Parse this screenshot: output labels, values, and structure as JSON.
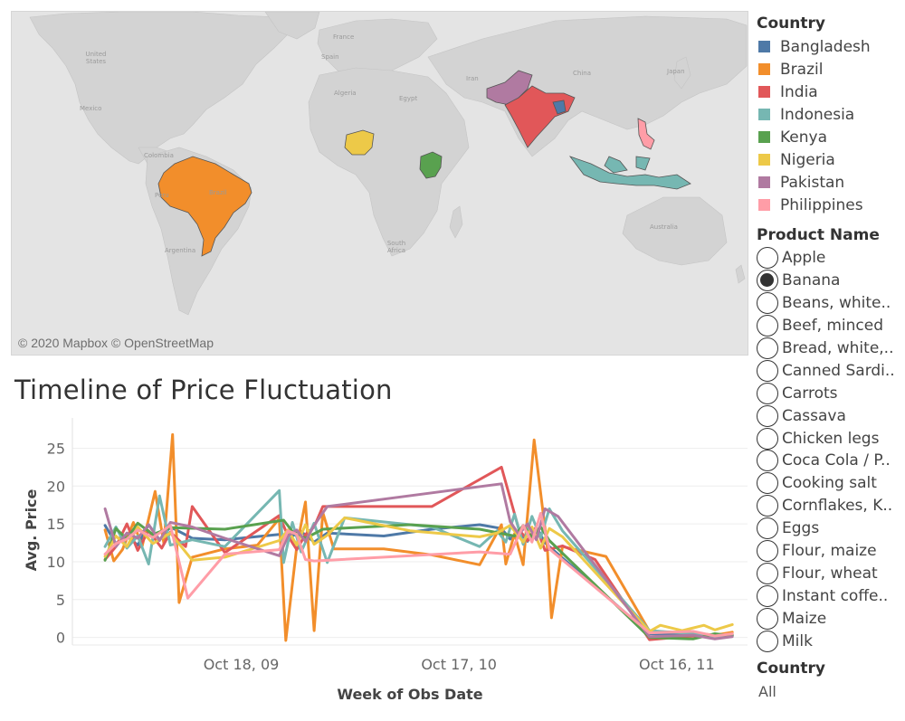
{
  "map": {
    "attribution": "© 2020 Mapbox © OpenStreetMap",
    "labels": {
      "united_states": "United States",
      "mexico": "Mexico",
      "colombia": "Colombia",
      "peru": "Peru",
      "argentina": "Argentina",
      "brazil": "Brazil",
      "france": "France",
      "spain": "Spain",
      "algeria": "Algeria",
      "egypt": "Egypt",
      "south_africa": "South Africa",
      "iran": "Iran",
      "china": "China",
      "japan": "Japan",
      "australia": "Australia"
    },
    "highlighted": [
      "Brazil",
      "Nigeria",
      "Kenya",
      "Pakistan",
      "India",
      "Bangladesh",
      "Indonesia",
      "Philippines"
    ]
  },
  "chart": {
    "title": "Timeline of Price Fluctuation"
  },
  "chart_data": {
    "type": "line",
    "title": "Timeline of Price Fluctuation",
    "xlabel": "Week of Obs Date",
    "ylabel": "Avg. Price",
    "ylim": [
      -1,
      29
    ],
    "yticks": [
      0,
      5,
      10,
      15,
      20,
      25
    ],
    "xticks": [
      "Oct 18, 09",
      "Oct 17, 10",
      "Oct 16, 11"
    ],
    "grid": true,
    "x_axis_order": "reversed",
    "series": [
      {
        "name": "Bangladesh",
        "color": "#4e79a7",
        "points": [
          [
            2011.78,
            0.3
          ],
          [
            2011.7,
            0.1
          ],
          [
            2011.6,
            0.4
          ],
          [
            2011.4,
            0.5
          ],
          [
            2010.92,
            12.5
          ],
          [
            2010.88,
            14.6
          ],
          [
            2010.84,
            12.7
          ],
          [
            2010.8,
            14.0
          ],
          [
            2010.76,
            13.0
          ],
          [
            2010.72,
            14.4
          ],
          [
            2010.62,
            14.9
          ],
          [
            2010.4,
            14.3
          ],
          [
            2010.18,
            13.4
          ],
          [
            2009.92,
            13.8
          ],
          [
            2009.86,
            12.6
          ],
          [
            2009.8,
            14.0
          ],
          [
            2009.74,
            13.1
          ],
          [
            2009.7,
            13.6
          ],
          [
            2009.45,
            12.9
          ],
          [
            2009.3,
            13.1
          ],
          [
            2009.2,
            14.6
          ],
          [
            2009.15,
            12.9
          ],
          [
            2009.1,
            14.9
          ],
          [
            2009.05,
            12.2
          ],
          [
            2009.0,
            13.4
          ],
          [
            2008.95,
            12.4
          ],
          [
            2008.9,
            14.8
          ]
        ]
      },
      {
        "name": "Brazil",
        "color": "#f28e2b",
        "points": [
          [
            2011.78,
            0.7
          ],
          [
            2011.7,
            0.3
          ],
          [
            2011.6,
            0.6
          ],
          [
            2011.4,
            0.8
          ],
          [
            2011.2,
            10.7
          ],
          [
            2011.0,
            12.0
          ],
          [
            2010.95,
            2.6
          ],
          [
            2010.93,
            12.1
          ],
          [
            2010.87,
            26.1
          ],
          [
            2010.82,
            9.6
          ],
          [
            2010.78,
            13.7
          ],
          [
            2010.74,
            9.7
          ],
          [
            2010.72,
            14.9
          ],
          [
            2010.62,
            9.6
          ],
          [
            2010.4,
            10.9
          ],
          [
            2010.18,
            11.7
          ],
          [
            2009.95,
            11.7
          ],
          [
            2009.9,
            16.5
          ],
          [
            2009.86,
            0.9
          ],
          [
            2009.82,
            17.9
          ],
          [
            2009.78,
            12.0
          ],
          [
            2009.73,
            -0.4
          ],
          [
            2009.7,
            15.7
          ],
          [
            2009.6,
            12.2
          ],
          [
            2009.45,
            11.7
          ],
          [
            2009.3,
            10.6
          ],
          [
            2009.24,
            4.6
          ],
          [
            2009.21,
            26.8
          ],
          [
            2009.17,
            12.4
          ],
          [
            2009.13,
            19.3
          ],
          [
            2009.07,
            12.0
          ],
          [
            2009.03,
            15.2
          ],
          [
            2008.98,
            11.6
          ],
          [
            2008.94,
            10.1
          ],
          [
            2008.9,
            14.2
          ]
        ]
      },
      {
        "name": "India",
        "color": "#e15759",
        "points": [
          [
            2011.78,
            0.4
          ],
          [
            2011.7,
            0.0
          ],
          [
            2011.6,
            0.2
          ],
          [
            2011.4,
            -0.3
          ],
          [
            2011.15,
            10.3
          ],
          [
            2011.0,
            12.1
          ],
          [
            2010.92,
            11.5
          ],
          [
            2010.88,
            14.6
          ],
          [
            2010.84,
            12.8
          ],
          [
            2010.8,
            14.3
          ],
          [
            2010.72,
            22.5
          ],
          [
            2010.4,
            17.3
          ],
          [
            2009.9,
            17.3
          ],
          [
            2009.86,
            14.6
          ],
          [
            2009.82,
            13.6
          ],
          [
            2009.78,
            11.6
          ],
          [
            2009.74,
            13.4
          ],
          [
            2009.7,
            16.1
          ],
          [
            2009.45,
            11.2
          ],
          [
            2009.3,
            17.3
          ],
          [
            2009.27,
            12.0
          ],
          [
            2009.2,
            13.9
          ],
          [
            2009.16,
            11.8
          ],
          [
            2009.1,
            14.1
          ],
          [
            2009.05,
            11.5
          ],
          [
            2009.0,
            15.0
          ],
          [
            2008.95,
            12.0
          ],
          [
            2008.9,
            10.3
          ]
        ]
      },
      {
        "name": "Indonesia",
        "color": "#76b7b2",
        "points": [
          [
            2011.78,
            0.3
          ],
          [
            2011.7,
            -0.1
          ],
          [
            2011.6,
            0.5
          ],
          [
            2011.4,
            0.9
          ],
          [
            2011.0,
            14.1
          ],
          [
            2010.94,
            17.0
          ],
          [
            2010.9,
            13.2
          ],
          [
            2010.86,
            16.0
          ],
          [
            2010.82,
            12.3
          ],
          [
            2010.78,
            16.3
          ],
          [
            2010.74,
            12.6
          ],
          [
            2010.7,
            14.1
          ],
          [
            2010.62,
            12.0
          ],
          [
            2010.4,
            14.6
          ],
          [
            2010.0,
            15.8
          ],
          [
            2009.92,
            9.9
          ],
          [
            2009.86,
            15.1
          ],
          [
            2009.8,
            11.3
          ],
          [
            2009.76,
            15.2
          ],
          [
            2009.72,
            9.9
          ],
          [
            2009.7,
            19.4
          ],
          [
            2009.45,
            12.0
          ],
          [
            2009.3,
            12.9
          ],
          [
            2009.2,
            12.2
          ],
          [
            2009.15,
            18.7
          ],
          [
            2009.1,
            9.7
          ],
          [
            2009.05,
            13.4
          ],
          [
            2009.0,
            11.8
          ],
          [
            2008.95,
            14.6
          ],
          [
            2008.9,
            12.0
          ]
        ]
      },
      {
        "name": "Kenya",
        "color": "#59a14f",
        "points": [
          [
            2011.78,
            0.2
          ],
          [
            2011.7,
            0.5
          ],
          [
            2011.6,
            -0.2
          ],
          [
            2011.4,
            0.0
          ],
          [
            2010.94,
            12.8
          ],
          [
            2010.9,
            14.6
          ],
          [
            2010.86,
            13.2
          ],
          [
            2010.82,
            14.8
          ],
          [
            2010.78,
            13.4
          ],
          [
            2010.62,
            14.3
          ],
          [
            2010.3,
            14.9
          ],
          [
            2009.9,
            14.3
          ],
          [
            2009.82,
            13.1
          ],
          [
            2009.76,
            14.0
          ],
          [
            2009.72,
            15.5
          ],
          [
            2009.45,
            14.3
          ],
          [
            2009.2,
            14.5
          ],
          [
            2009.12,
            13.6
          ],
          [
            2009.05,
            15.1
          ],
          [
            2009.0,
            13.0
          ],
          [
            2008.95,
            14.4
          ],
          [
            2008.9,
            10.2
          ]
        ]
      },
      {
        "name": "Nigeria",
        "color": "#edc948",
        "points": [
          [
            2011.78,
            1.7
          ],
          [
            2011.7,
            1.0
          ],
          [
            2011.65,
            1.6
          ],
          [
            2011.55,
            0.9
          ],
          [
            2011.45,
            1.6
          ],
          [
            2011.4,
            0.8
          ],
          [
            2011.0,
            13.3
          ],
          [
            2010.94,
            14.4
          ],
          [
            2010.9,
            11.8
          ],
          [
            2010.86,
            14.6
          ],
          [
            2010.82,
            12.6
          ],
          [
            2010.76,
            14.8
          ],
          [
            2010.7,
            13.8
          ],
          [
            2010.62,
            13.3
          ],
          [
            2010.3,
            14.1
          ],
          [
            2010.0,
            15.8
          ],
          [
            2009.92,
            13.5
          ],
          [
            2009.86,
            12.3
          ],
          [
            2009.82,
            14.9
          ],
          [
            2009.78,
            12.2
          ],
          [
            2009.74,
            14.2
          ],
          [
            2009.7,
            12.8
          ],
          [
            2009.45,
            10.6
          ],
          [
            2009.3,
            10.2
          ],
          [
            2009.2,
            13.8
          ],
          [
            2009.12,
            12.4
          ],
          [
            2009.05,
            14.6
          ],
          [
            2009.0,
            12.0
          ],
          [
            2008.95,
            13.4
          ],
          [
            2008.9,
            10.7
          ]
        ]
      },
      {
        "name": "Pakistan",
        "color": "#b07aa1",
        "points": [
          [
            2011.78,
            0.1
          ],
          [
            2011.7,
            -0.2
          ],
          [
            2011.6,
            0.3
          ],
          [
            2011.4,
            0.1
          ],
          [
            2010.98,
            16.0
          ],
          [
            2010.92,
            17.0
          ],
          [
            2010.88,
            12.9
          ],
          [
            2010.84,
            15.0
          ],
          [
            2010.8,
            13.6
          ],
          [
            2010.76,
            15.3
          ],
          [
            2010.72,
            20.3
          ],
          [
            2010.4,
            19.1
          ],
          [
            2009.92,
            17.3
          ],
          [
            2009.86,
            14.8
          ],
          [
            2009.82,
            12.7
          ],
          [
            2009.78,
            14.2
          ],
          [
            2009.74,
            13.4
          ],
          [
            2009.7,
            10.8
          ],
          [
            2009.45,
            13.1
          ],
          [
            2009.3,
            14.6
          ],
          [
            2009.2,
            15.2
          ],
          [
            2009.15,
            12.8
          ],
          [
            2009.1,
            14.9
          ],
          [
            2009.05,
            13.1
          ],
          [
            2009.0,
            13.8
          ],
          [
            2008.95,
            12.0
          ],
          [
            2008.9,
            17.0
          ]
        ]
      },
      {
        "name": "Philippines",
        "color": "#ff9da7",
        "points": [
          [
            2011.78,
            0.5
          ],
          [
            2011.7,
            0.2
          ],
          [
            2011.6,
            0.8
          ],
          [
            2011.4,
            0.6
          ],
          [
            2010.94,
            11.7
          ],
          [
            2010.9,
            16.4
          ],
          [
            2010.86,
            12.6
          ],
          [
            2010.82,
            14.8
          ],
          [
            2010.76,
            11.0
          ],
          [
            2010.62,
            11.3
          ],
          [
            2009.86,
            10.1
          ],
          [
            2009.82,
            10.3
          ],
          [
            2009.78,
            13.6
          ],
          [
            2009.74,
            14.1
          ],
          [
            2009.7,
            11.6
          ],
          [
            2009.45,
            11.0
          ],
          [
            2009.28,
            5.2
          ],
          [
            2009.2,
            14.8
          ],
          [
            2009.12,
            13.2
          ],
          [
            2009.05,
            14.2
          ],
          [
            2009.0,
            13.0
          ],
          [
            2008.95,
            12.4
          ],
          [
            2008.9,
            11.0
          ]
        ]
      }
    ]
  },
  "sidebar": {
    "country_legend_title": "Country",
    "countries": [
      {
        "label": "Bangladesh",
        "color": "#4e79a7"
      },
      {
        "label": "Brazil",
        "color": "#f28e2b"
      },
      {
        "label": "India",
        "color": "#e15759"
      },
      {
        "label": "Indonesia",
        "color": "#76b7b2"
      },
      {
        "label": "Kenya",
        "color": "#59a14f"
      },
      {
        "label": "Nigeria",
        "color": "#edc948"
      },
      {
        "label": "Pakistan",
        "color": "#b07aa1"
      },
      {
        "label": "Philippines",
        "color": "#ff9da7"
      }
    ],
    "product_title": "Product Name",
    "products": [
      {
        "label": "Apple",
        "checked": false
      },
      {
        "label": "Banana",
        "checked": true
      },
      {
        "label": "Beans, white..",
        "checked": false
      },
      {
        "label": "Beef, minced",
        "checked": false
      },
      {
        "label": "Bread, white,..",
        "checked": false
      },
      {
        "label": "Canned Sardi..",
        "checked": false
      },
      {
        "label": "Carrots",
        "checked": false
      },
      {
        "label": "Cassava",
        "checked": false
      },
      {
        "label": "Chicken legs",
        "checked": false
      },
      {
        "label": "Coca Cola / P..",
        "checked": false
      },
      {
        "label": "Cooking salt",
        "checked": false
      },
      {
        "label": "Cornflakes, K..",
        "checked": false
      },
      {
        "label": "Eggs",
        "checked": false
      },
      {
        "label": "Flour, maize",
        "checked": false
      },
      {
        "label": "Flour, wheat",
        "checked": false
      },
      {
        "label": "Instant coffe..",
        "checked": false
      },
      {
        "label": "Maize",
        "checked": false
      },
      {
        "label": "Milk",
        "checked": false
      }
    ],
    "country_filter_title": "Country",
    "country_filter_value": "All"
  }
}
